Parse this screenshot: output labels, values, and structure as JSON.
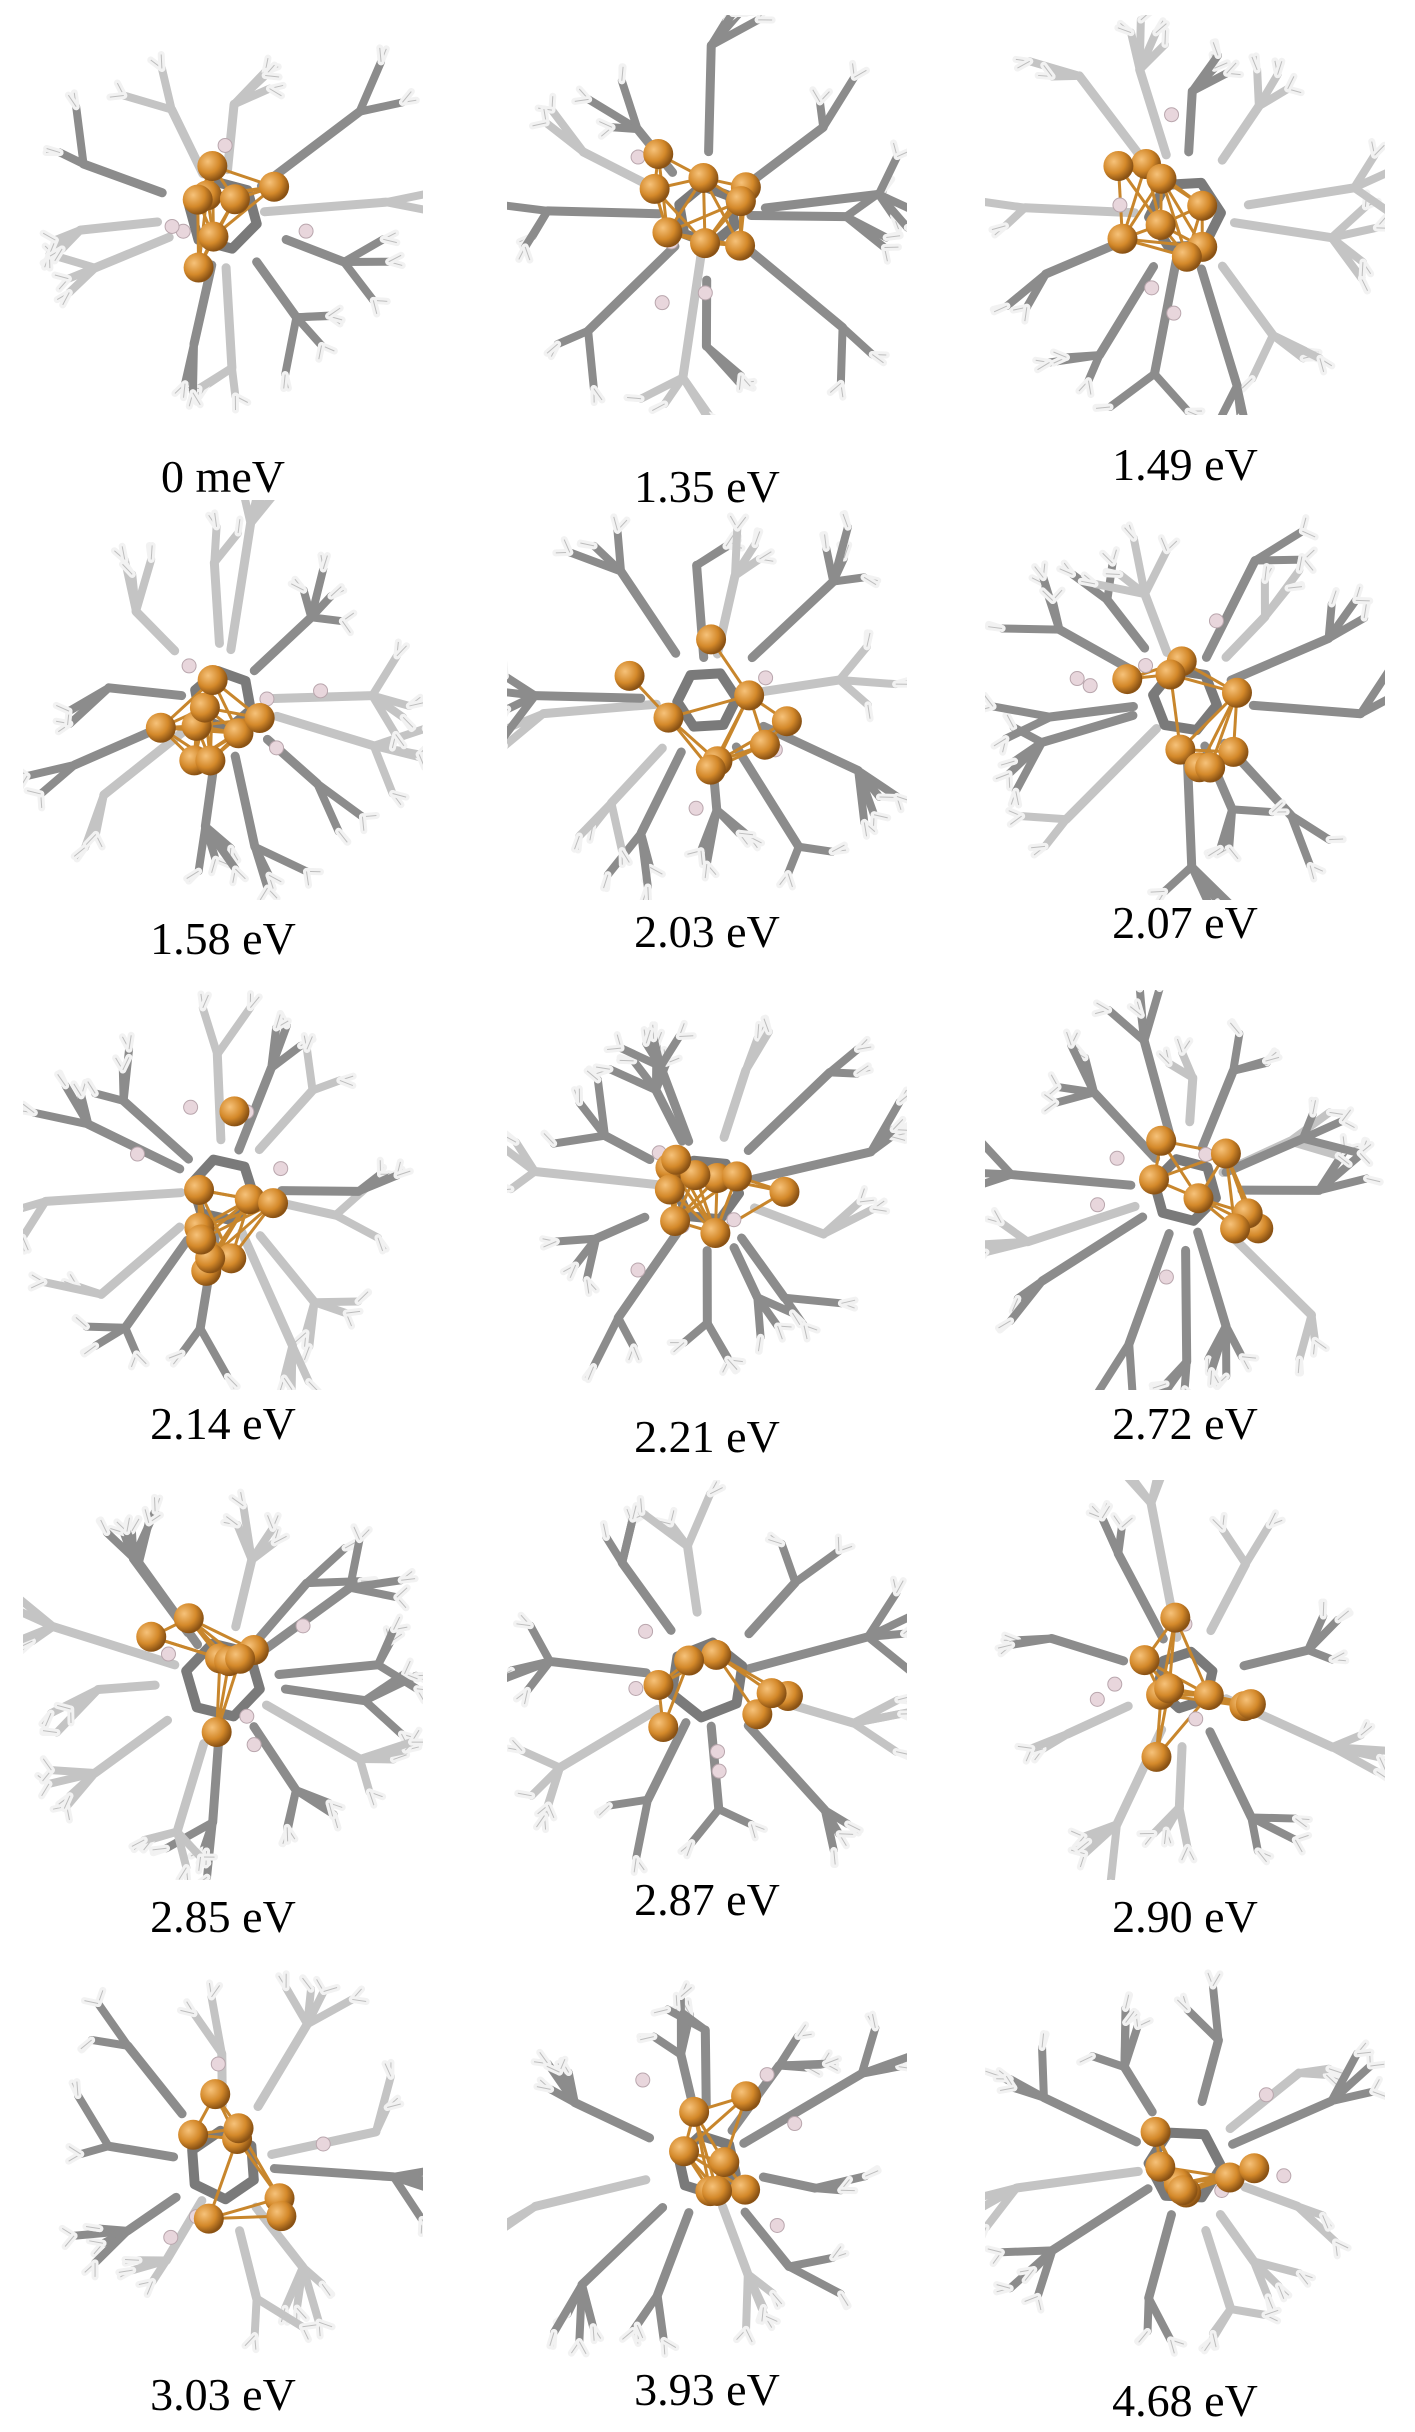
{
  "structures": [
    {
      "label": "0 meV"
    },
    {
      "label": "1.35 eV"
    },
    {
      "label": "1.49 eV"
    },
    {
      "label": "1.58 eV"
    },
    {
      "label": "2.03 eV"
    },
    {
      "label": "2.07 eV"
    },
    {
      "label": "2.14 eV"
    },
    {
      "label": "2.21 eV"
    },
    {
      "label": "2.72 eV"
    },
    {
      "label": "2.85 eV"
    },
    {
      "label": "2.87 eV"
    },
    {
      "label": "2.90 eV"
    },
    {
      "label": "3.03 eV"
    },
    {
      "label": "3.93 eV"
    },
    {
      "label": "4.68 eV"
    }
  ],
  "colors": {
    "metal_atom": "#d4892a",
    "metal_bond": "#c8862c",
    "boron_atom": "#e8d6dc",
    "carbon_stick": "#8c8c8c",
    "hydrogen_stick": "#f2f2f2",
    "label_text": "#000000"
  }
}
